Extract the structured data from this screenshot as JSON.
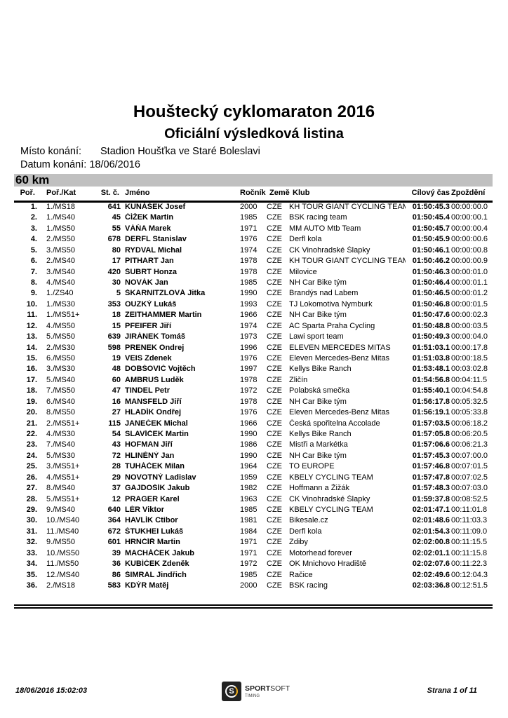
{
  "title": "Houštecký cyklomaraton 2016",
  "subtitle": "Oficiální výsledková listina",
  "place_label": "Místo konání:",
  "place_value": "Stadion Houšťka ve Staré Boleslavi",
  "date_label": "Datum konání:",
  "date_value": "18/06/2016",
  "category": "60 km",
  "columns": {
    "pos": "Poř.",
    "kat": "Poř./Kat",
    "st": "St. č.",
    "name": "Jméno",
    "yr": "Ročník",
    "nat": "Země",
    "club": "Klub",
    "time": "Cílový čas",
    "gap": "Zpoždění"
  },
  "rows": [
    [
      "1.",
      "1./MS18",
      "641",
      "KUNÁŠEK Josef",
      "2000",
      "CZE",
      "KH TOUR GIANT CYCLING TEAM",
      "01:50:45.3",
      "00:00:00.0"
    ],
    [
      "2.",
      "1./MS40",
      "45",
      "ČÍŽEK Martin",
      "1985",
      "CZE",
      "BSK racing team",
      "01:50:45.4",
      "00:00:00.1"
    ],
    [
      "3.",
      "1./MS50",
      "55",
      "VÁŇA Marek",
      "1971",
      "CZE",
      "MM AUTO Mtb Team",
      "01:50:45.7",
      "00:00:00.4"
    ],
    [
      "4.",
      "2./MS50",
      "678",
      "DERFL Stanislav",
      "1976",
      "CZE",
      "Derfl kola",
      "01:50:45.9",
      "00:00:00.6"
    ],
    [
      "5.",
      "3./MS50",
      "80",
      "RYDVAL Michal",
      "1974",
      "CZE",
      "CK Vinohradské Šlapky",
      "01:50:46.1",
      "00:00:00.8"
    ],
    [
      "6.",
      "2./MS40",
      "17",
      "PITHART Jan",
      "1978",
      "CZE",
      "KH TOUR GIANT CYCLING TEAM",
      "01:50:46.2",
      "00:00:00.9"
    ],
    [
      "7.",
      "3./MS40",
      "420",
      "ŠUBRT Honza",
      "1978",
      "CZE",
      "Milovice",
      "01:50:46.3",
      "00:00:01.0"
    ],
    [
      "8.",
      "4./MS40",
      "30",
      "NOVÁK Jan",
      "1985",
      "CZE",
      "NH Car Bike tým",
      "01:50:46.4",
      "00:00:01.1"
    ],
    [
      "9.",
      "1./ZS40",
      "5",
      "ŠKARNITZLOVÁ Jitka",
      "1990",
      "CZE",
      "Brandýs nad Labem",
      "01:50:46.5",
      "00:00:01.2"
    ],
    [
      "10.",
      "1./MS30",
      "353",
      "OUZKÝ Lukáš",
      "1993",
      "CZE",
      "TJ Lokomotiva Nymburk",
      "01:50:46.8",
      "00:00:01.5"
    ],
    [
      "11.",
      "1./MS51+",
      "18",
      "ZEITHAMMER Martin",
      "1966",
      "CZE",
      "NH Car Bike tým",
      "01:50:47.6",
      "00:00:02.3"
    ],
    [
      "12.",
      "4./MS50",
      "15",
      "PFEIFER Jiří",
      "1974",
      "CZE",
      "AC Sparta Praha Cycling",
      "01:50:48.8",
      "00:00:03.5"
    ],
    [
      "13.",
      "5./MS50",
      "639",
      "JIRÁNEK Tomáš",
      "1973",
      "CZE",
      "Lawi sport team",
      "01:50:49.3",
      "00:00:04.0"
    ],
    [
      "14.",
      "2./MS30",
      "598",
      "PRENEK Ondrej",
      "1996",
      "CZE",
      "ELEVEN MERCEDES MITAS",
      "01:51:03.1",
      "00:00:17.8"
    ],
    [
      "15.",
      "6./MS50",
      "19",
      "VEIS Zdenek",
      "1976",
      "CZE",
      "Eleven Mercedes-Benz Mitas",
      "01:51:03.8",
      "00:00:18.5"
    ],
    [
      "16.",
      "3./MS30",
      "48",
      "DOBŠOVIČ Vojtěch",
      "1997",
      "CZE",
      "Kellys Bike Ranch",
      "01:53:48.1",
      "00:03:02.8"
    ],
    [
      "17.",
      "5./MS40",
      "60",
      "AMBRUŠ Luděk",
      "1978",
      "CZE",
      "Zličín",
      "01:54:56.8",
      "00:04:11.5"
    ],
    [
      "18.",
      "7./MS50",
      "47",
      "TINDEL Petr",
      "1972",
      "CZE",
      "Polabská smečka",
      "01:55:40.1",
      "00:04:54.8"
    ],
    [
      "19.",
      "6./MS40",
      "16",
      "MANSFELD Jiří",
      "1978",
      "CZE",
      "NH Car Bike tým",
      "01:56:17.8",
      "00:05:32.5"
    ],
    [
      "20.",
      "8./MS50",
      "27",
      "HLADÍK Ondřej",
      "1976",
      "CZE",
      "Eleven Mercedes-Benz Mitas",
      "01:56:19.1",
      "00:05:33.8"
    ],
    [
      "21.",
      "2./MS51+",
      "115",
      "JANEČEK Michal",
      "1966",
      "CZE",
      "Česká spořitelna Accolade",
      "01:57:03.5",
      "00:06:18.2"
    ],
    [
      "22.",
      "4./MS30",
      "54",
      "SLAVÍČEK Martin",
      "1990",
      "CZE",
      "Kellys Bike Ranch",
      "01:57:05.8",
      "00:06:20.5"
    ],
    [
      "23.",
      "7./MS40",
      "43",
      "HOFMAN Jiří",
      "1986",
      "CZE",
      "Mistři a Markétka",
      "01:57:06.6",
      "00:06:21.3"
    ],
    [
      "24.",
      "5./MS30",
      "72",
      "HLINĚNÝ Jan",
      "1990",
      "CZE",
      "NH Car Bike tým",
      "01:57:45.3",
      "00:07:00.0"
    ],
    [
      "25.",
      "3./MS51+",
      "28",
      "TUHÁČEK Milan",
      "1964",
      "CZE",
      "TO EUROPE",
      "01:57:46.8",
      "00:07:01.5"
    ],
    [
      "26.",
      "4./MS51+",
      "29",
      "NOVOTNÝ Ladislav",
      "1959",
      "CZE",
      "KBELY CYCLING TEAM",
      "01:57:47.8",
      "00:07:02.5"
    ],
    [
      "27.",
      "8./MS40",
      "37",
      "GAJDOŠÍK Jakub",
      "1982",
      "CZE",
      "Hoffmann a Žižák",
      "01:57:48.3",
      "00:07:03.0"
    ],
    [
      "28.",
      "5./MS51+",
      "12",
      "PRAGER Karel",
      "1963",
      "CZE",
      "CK Vinohradské Šlapky",
      "01:59:37.8",
      "00:08:52.5"
    ],
    [
      "29.",
      "9./MS40",
      "640",
      "LÉR Viktor",
      "1985",
      "CZE",
      "KBELY CYCLING TEAM",
      "02:01:47.1",
      "00:11:01.8"
    ],
    [
      "30.",
      "10./MS40",
      "364",
      "HAVLÍK Ctibor",
      "1981",
      "CZE",
      "Bikesale.cz",
      "02:01:48.6",
      "00:11:03.3"
    ],
    [
      "31.",
      "11./MS40",
      "672",
      "ŠTUKHEI Lukáš",
      "1984",
      "CZE",
      "Derfl kola",
      "02:01:54.3",
      "00:11:09.0"
    ],
    [
      "32.",
      "9./MS50",
      "601",
      "HRNČÍŘ Martin",
      "1971",
      "CZE",
      "Zdiby",
      "02:02:00.8",
      "00:11:15.5"
    ],
    [
      "33.",
      "10./MS50",
      "39",
      "MACHÁČEK Jakub",
      "1971",
      "CZE",
      "Motorhead forever",
      "02:02:01.1",
      "00:11:15.8"
    ],
    [
      "34.",
      "11./MS50",
      "36",
      "KUBÍČEK Zdeněk",
      "1972",
      "CZE",
      "OK Mnichovo Hradiště",
      "02:02:07.6",
      "00:11:22.3"
    ],
    [
      "35.",
      "12./MS40",
      "86",
      "ŠIMRAL Jindřich",
      "1985",
      "CZE",
      "Račice",
      "02:02:49.6",
      "00:12:04.3"
    ],
    [
      "36.",
      "2./MS18",
      "583",
      "KDÝR Matěj",
      "2000",
      "CZE",
      "BSK racing",
      "02:03:36.8",
      "00:12:51.5"
    ]
  ],
  "footer": {
    "printed": "18/06/2016 15:02:03",
    "page": "Strana 1 of 11",
    "logo_text": "SPORTSOFT TIMING",
    "logo_accent": "#f2b01e"
  }
}
